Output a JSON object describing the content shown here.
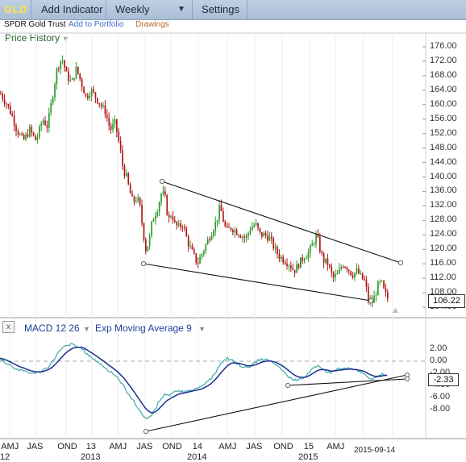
{
  "toolbar": {
    "logo": "GLD",
    "add_indicator": "Add Indicator",
    "interval": "Weekly",
    "interval_caret": "▼",
    "settings": "Settings"
  },
  "infobar": {
    "name": "SPDR Gold Trust",
    "add_portfolio": "Add to Portfolio",
    "drawings": "Drawings"
  },
  "price_panel": {
    "label": "Price History",
    "caret": "▼",
    "last_price": "106.22",
    "y_ticks": [
      "176.00",
      "172.00",
      "168.00",
      "164.00",
      "160.00",
      "156.00",
      "152.00",
      "148.00",
      "144.00",
      "140.00",
      "136.00",
      "132.00",
      "128.00",
      "124.00",
      "120.00",
      "116.00",
      "112.00",
      "108.00",
      "104.00"
    ]
  },
  "macd_panel": {
    "close": "x",
    "label": "MACD 12 26",
    "caret1": "▼",
    "signal_label": "Exp Moving Average 9",
    "caret2": "▼",
    "last_value": "-2.33",
    "y_ticks": [
      "2.00",
      "0.00",
      "-2.00",
      "-4.00",
      "-6.00",
      "-8.00"
    ]
  },
  "x_axis": {
    "months": [
      "AMJ",
      "JAS",
      "OND",
      "13",
      "AMJ",
      "JAS",
      "OND",
      "14",
      "AMJ",
      "JAS",
      "OND",
      "15",
      "AMJ",
      "2015-09-14"
    ],
    "years": [
      "12",
      "2013",
      "2014",
      "2015"
    ]
  },
  "colors": {
    "up": "#2a9a2a",
    "down": "#b01818",
    "macd": "#1a2f8f",
    "signal": "#3fa8a8"
  }
}
